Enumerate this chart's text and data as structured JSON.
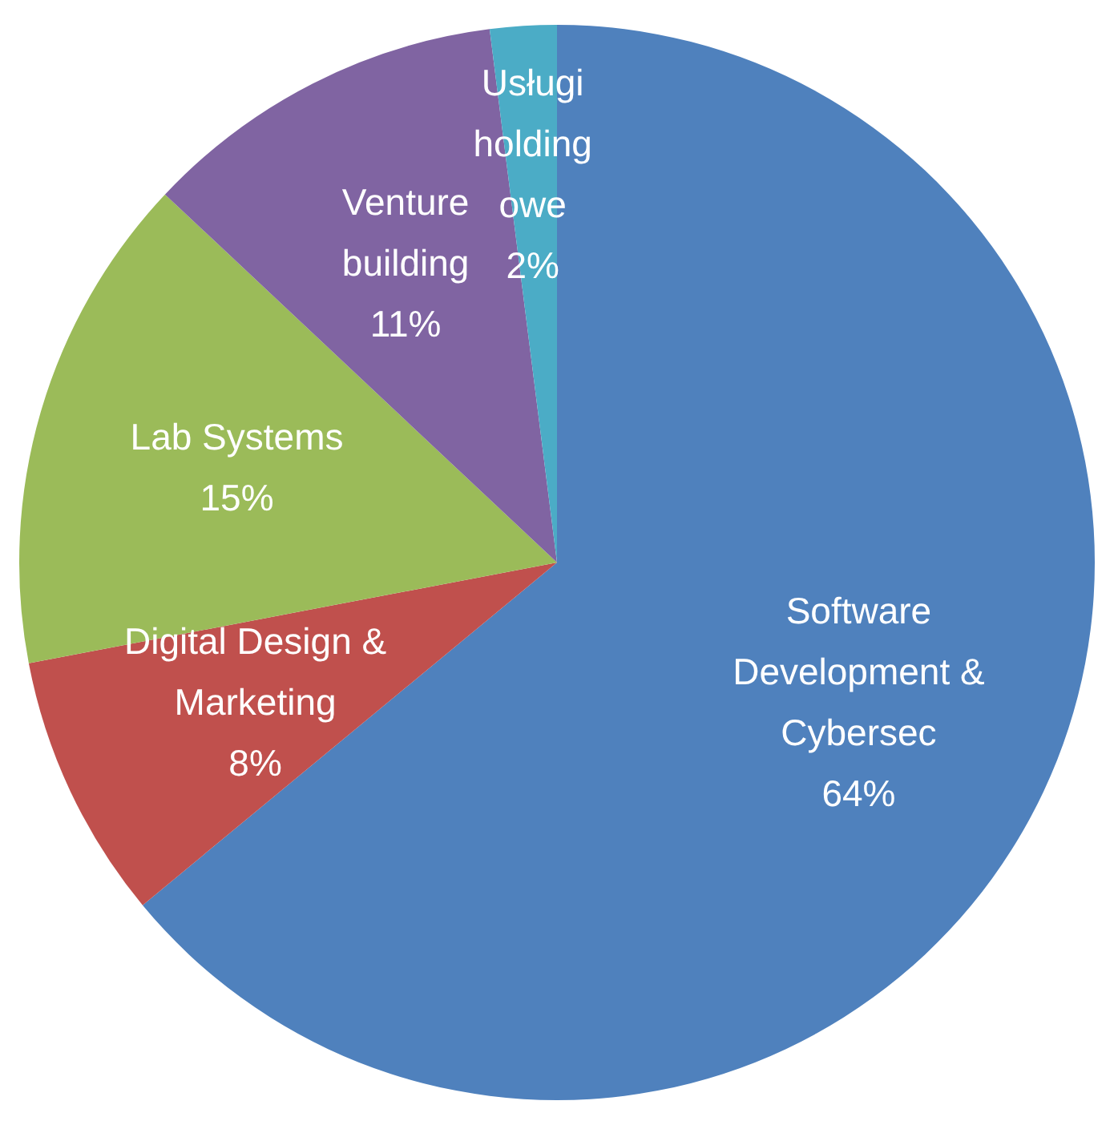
{
  "chart_data": {
    "type": "pie",
    "categories": [
      "Software Development & Cybersec",
      "Digital Design & Marketing",
      "Lab Systems",
      "Venture building",
      "Usługi holdingowe"
    ],
    "values": [
      64,
      8,
      15,
      11,
      2
    ],
    "colors": [
      "#4f81bd",
      "#c0504d",
      "#9bbb59",
      "#8064a2",
      "#4bacc6"
    ],
    "value_labels": [
      "64%",
      "8%",
      "15%",
      "11%",
      "2%"
    ],
    "legend": false
  }
}
